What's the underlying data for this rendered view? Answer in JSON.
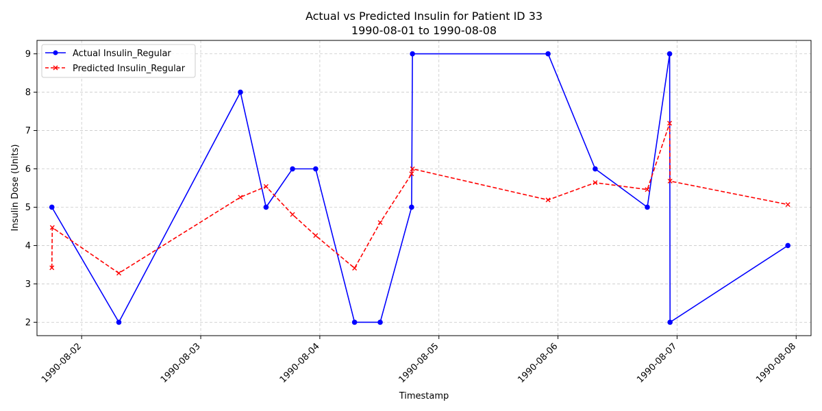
{
  "chart_data": {
    "type": "line",
    "title": "Actual vs Predicted Insulin for Patient ID 33",
    "subtitle": "1990-08-01 to 1990-08-08",
    "xlabel": "Timestamp",
    "ylabel": "Insulin Dose (Units)",
    "xlim": [
      "1990-08-01 15:00",
      "1990-08-08 03:00"
    ],
    "ylim": [
      1.65,
      9.35
    ],
    "x_ticks": [
      "1990-08-02",
      "1990-08-03",
      "1990-08-04",
      "1990-08-05",
      "1990-08-06",
      "1990-08-07",
      "1990-08-08"
    ],
    "y_ticks": [
      2,
      3,
      4,
      5,
      6,
      7,
      8,
      9
    ],
    "grid": true,
    "legend_position": "top-left",
    "series": [
      {
        "name": "Actual Insulin_Regular",
        "color": "#0000ff",
        "line_style": "solid",
        "marker": "circle",
        "points": [
          {
            "x": "1990-08-01 18:00",
            "y": 5
          },
          {
            "x": "1990-08-02 07:30",
            "y": 2
          },
          {
            "x": "1990-08-03 08:00",
            "y": 8
          },
          {
            "x": "1990-08-03 13:10",
            "y": 5
          },
          {
            "x": "1990-08-03 18:30",
            "y": 6
          },
          {
            "x": "1990-08-03 23:10",
            "y": 6
          },
          {
            "x": "1990-08-04 07:00",
            "y": 2
          },
          {
            "x": "1990-08-04 12:10",
            "y": 2
          },
          {
            "x": "1990-08-04 18:30",
            "y": 5
          },
          {
            "x": "1990-08-04 18:40",
            "y": 9
          },
          {
            "x": "1990-08-05 22:00",
            "y": 9
          },
          {
            "x": "1990-08-06 07:30",
            "y": 6
          },
          {
            "x": "1990-08-06 18:00",
            "y": 5
          },
          {
            "x": "1990-08-06 22:30",
            "y": 9
          },
          {
            "x": "1990-08-06 22:35",
            "y": 2
          },
          {
            "x": "1990-08-07 22:20",
            "y": 4
          }
        ]
      },
      {
        "name": "Predicted Insulin_Regular",
        "color": "#ff0000",
        "line_style": "dashed",
        "marker": "x",
        "points": [
          {
            "x": "1990-08-01 18:00",
            "y": 3.42
          },
          {
            "x": "1990-08-01 18:05",
            "y": 4.47
          },
          {
            "x": "1990-08-02 07:30",
            "y": 3.28
          },
          {
            "x": "1990-08-03 08:00",
            "y": 5.26
          },
          {
            "x": "1990-08-03 13:10",
            "y": 5.54
          },
          {
            "x": "1990-08-03 18:30",
            "y": 4.81
          },
          {
            "x": "1990-08-03 23:10",
            "y": 4.26
          },
          {
            "x": "1990-08-04 07:00",
            "y": 3.41
          },
          {
            "x": "1990-08-04 12:10",
            "y": 4.6
          },
          {
            "x": "1990-08-04 18:30",
            "y": 5.87
          },
          {
            "x": "1990-08-04 18:40",
            "y": 6.0
          },
          {
            "x": "1990-08-05 22:00",
            "y": 5.19
          },
          {
            "x": "1990-08-06 07:30",
            "y": 5.64
          },
          {
            "x": "1990-08-06 18:00",
            "y": 5.46
          },
          {
            "x": "1990-08-06 22:30",
            "y": 7.19
          },
          {
            "x": "1990-08-06 22:35",
            "y": 5.68
          },
          {
            "x": "1990-08-07 22:20",
            "y": 5.07
          }
        ]
      }
    ]
  }
}
